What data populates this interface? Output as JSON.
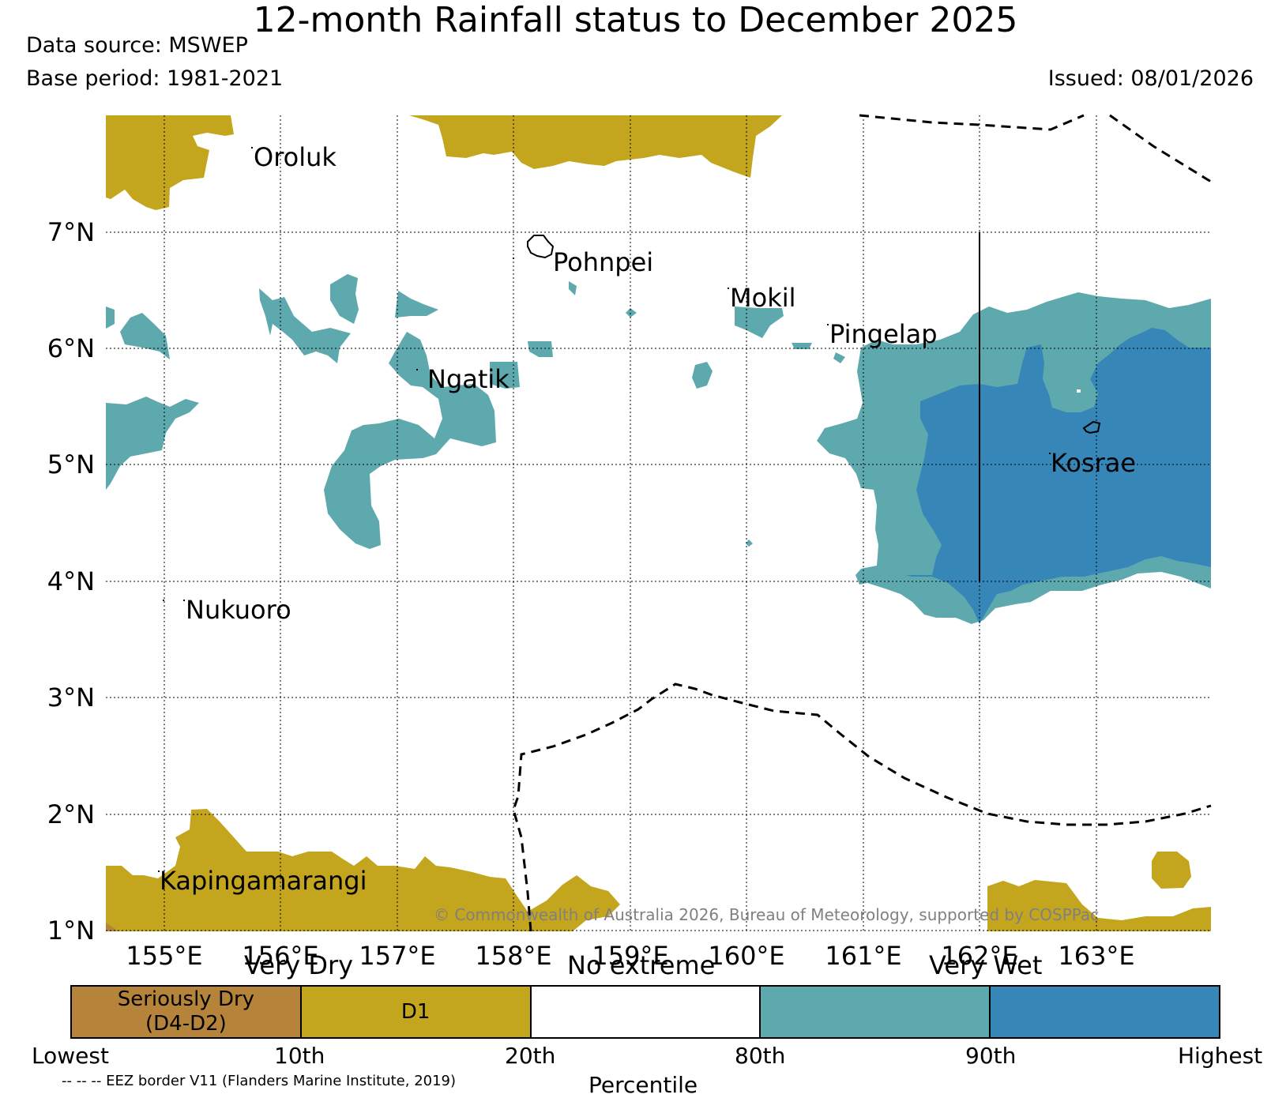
{
  "header": {
    "title": "12-month Rainfall status to December 2025",
    "source": "Data source: MSWEP",
    "base_period": "Base period: 1981-2021",
    "issued": "Issued: 08/01/2026"
  },
  "map": {
    "lat_labels": [
      "7°N",
      "6°N",
      "5°N",
      "4°N",
      "3°N",
      "2°N",
      "1°N"
    ],
    "lon_labels": [
      "155°E",
      "156°E",
      "157°E",
      "158°E",
      "159°E",
      "160°E",
      "161°E",
      "162°E",
      "163°E"
    ],
    "places": {
      "oroluk": "Oroluk",
      "pohnpei": "Pohnpei",
      "mokil": "Mokil",
      "pingelap": "Pingelap",
      "ngatik": "Ngatik",
      "kosrae": "Kosrae",
      "nukuoro": "Nukuoro",
      "kapingamarangi": "Kapingamarangi"
    },
    "copyright": "© Commonwealth of Australia 2026, Bureau of Meteorology, supported by COSPPac",
    "colors": {
      "seriously_dry": "#b5843a",
      "d1": "#c3a51e",
      "no_extreme": "#ffffff",
      "very_wet": "#5ea9ae",
      "highest_wet": "#3686b8"
    }
  },
  "legend": {
    "categories": {
      "very_dry": "Very Dry",
      "no_extreme": "No extreme",
      "very_wet": "Very Wet"
    },
    "segments": {
      "seriously_dry": "Seriously Dry\n(D4-D2)",
      "d1": "D1",
      "no_extreme": "",
      "wet80": "",
      "wet90": ""
    },
    "percentiles": {
      "lowest": "Lowest",
      "p10": "10th",
      "p20": "20th",
      "p80": "80th",
      "p90": "90th",
      "highest": "Highest"
    },
    "axis_label": "Percentile",
    "eez_note": "-- -- -- EEZ border V11 (Flanders Marine Institute, 2019)"
  }
}
